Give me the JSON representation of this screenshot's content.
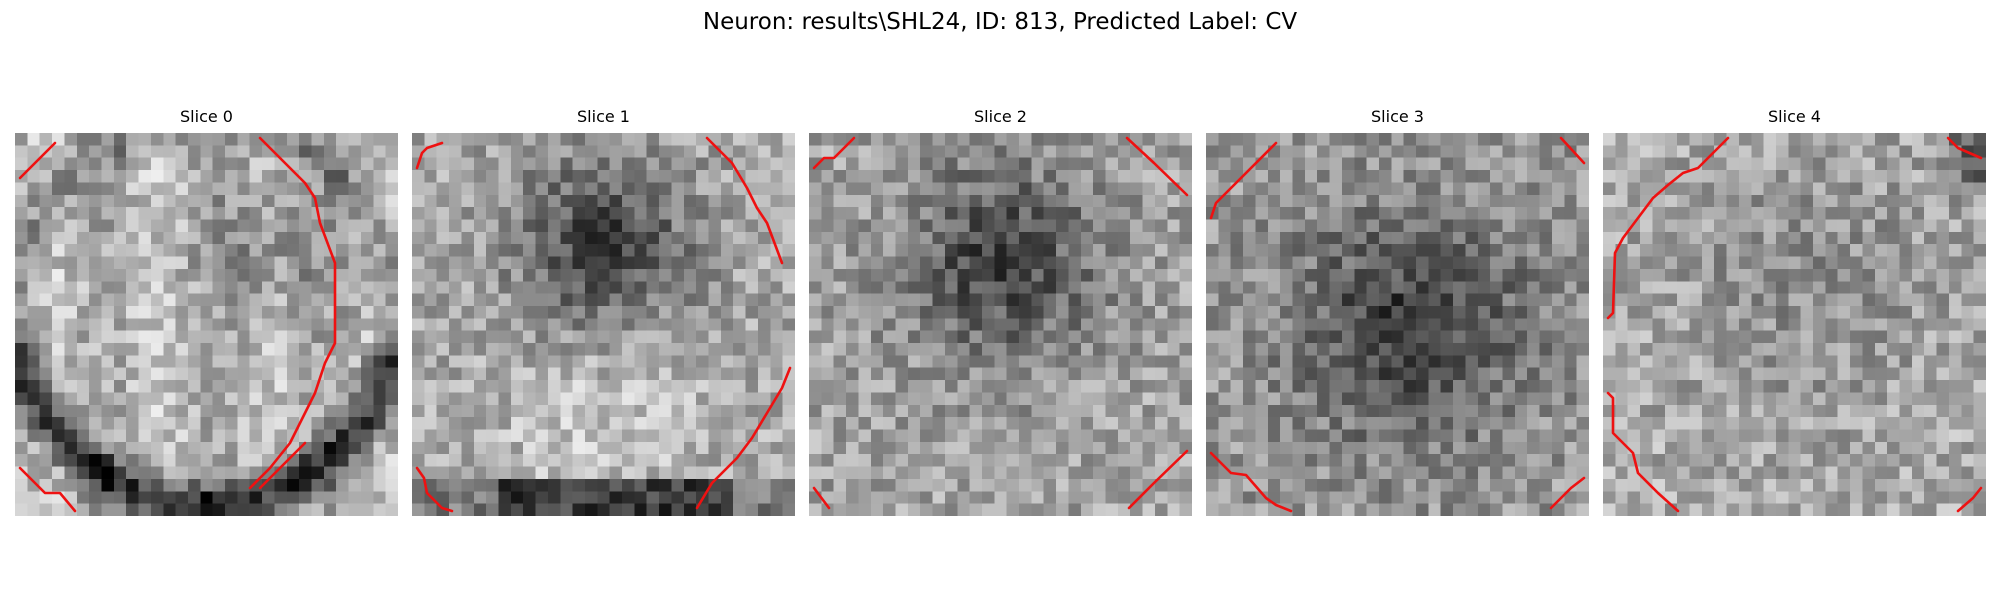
{
  "figure": {
    "title": "Neuron: results\\SHL24, ID: 813, Predicted Label: CV"
  },
  "panels": [
    {
      "title": "Slice 0"
    },
    {
      "title": "Slice 1"
    },
    {
      "title": "Slice 2"
    },
    {
      "title": "Slice 3"
    },
    {
      "title": "Slice 4"
    }
  ],
  "colors": {
    "contour": "#ee1111",
    "background": "#ffffff"
  }
}
